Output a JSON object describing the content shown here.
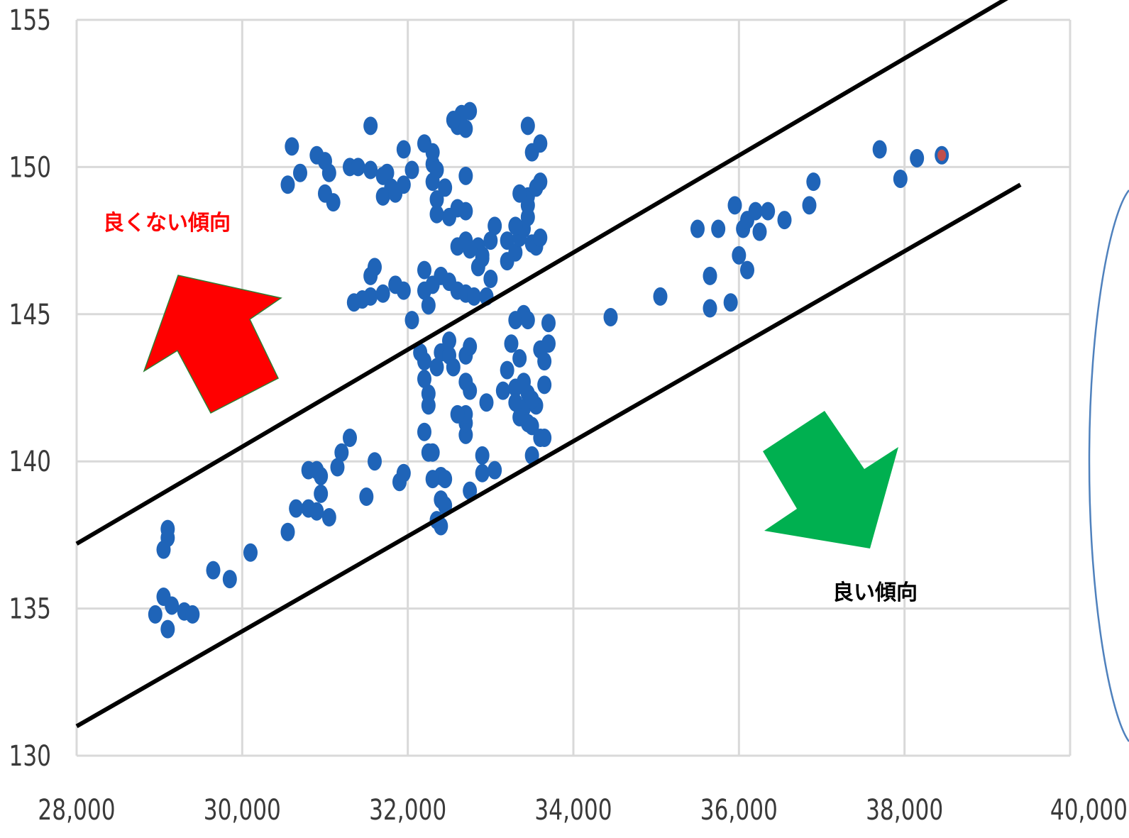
{
  "chart_data": {
    "type": "scatter",
    "title": "",
    "xlabel": "",
    "ylabel": "",
    "xlim": [
      28000,
      40000
    ],
    "ylim": [
      130,
      155
    ],
    "x_ticks": [
      28000,
      30000,
      32000,
      34000,
      36000,
      38000,
      40000
    ],
    "x_tick_labels": [
      "28,000",
      "30,000",
      "32,000",
      "34,000",
      "36,000",
      "38,000",
      "40,000"
    ],
    "y_ticks": [
      130,
      135,
      140,
      145,
      150,
      155
    ],
    "y_tick_labels": [
      "130",
      "135",
      "140",
      "145",
      "150",
      "155"
    ],
    "grid": true,
    "legend": "none",
    "colors": {
      "points": "#1f64b8",
      "highlight_point": "#c0504d",
      "up_arrow": "#ff0000",
      "up_arrow_border": "#2e7d32",
      "down_arrow": "#00b050",
      "bad_label": "#ff0000",
      "good_label": "#000000",
      "band_lines": "#000000",
      "grid": "#d9d9d9",
      "outline": "#4f81bd"
    },
    "annotations": [
      {
        "text": "良くない傾向",
        "color": "#ff0000"
      },
      {
        "text": "良い傾向",
        "color": "#000000"
      }
    ],
    "band_lines": [
      {
        "name": "upper",
        "from": [
          28000,
          137.2
        ],
        "to": [
          39400,
          156
        ]
      },
      {
        "name": "lower",
        "from": [
          28000,
          131.0
        ],
        "to": [
          39400,
          149.4
        ]
      }
    ],
    "highlight_point": {
      "x": 38450,
      "y": 150.4
    },
    "points": [
      [
        29.1,
        137.7
      ],
      [
        29.1,
        137.4
      ],
      [
        29.05,
        137.0
      ],
      [
        29.05,
        135.4
      ],
      [
        29.15,
        135.1
      ],
      [
        28.95,
        134.8
      ],
      [
        29.3,
        134.9
      ],
      [
        29.4,
        134.8
      ],
      [
        29.1,
        134.3
      ],
      [
        29.65,
        136.3
      ],
      [
        29.85,
        136.0
      ],
      [
        30.1,
        136.9
      ],
      [
        30.55,
        137.6
      ],
      [
        30.65,
        138.4
      ],
      [
        30.8,
        138.4
      ],
      [
        30.95,
        138.9
      ],
      [
        31.05,
        138.1
      ],
      [
        30.9,
        138.3
      ],
      [
        30.8,
        139.7
      ],
      [
        30.9,
        139.7
      ],
      [
        30.95,
        139.5
      ],
      [
        31.15,
        139.8
      ],
      [
        31.2,
        140.3
      ],
      [
        31.3,
        140.8
      ],
      [
        31.5,
        138.8
      ],
      [
        31.6,
        140.0
      ],
      [
        31.9,
        139.3
      ],
      [
        31.95,
        139.6
      ],
      [
        32.2,
        141.0
      ],
      [
        32.25,
        140.3
      ],
      [
        32.3,
        140.3
      ],
      [
        32.3,
        139.4
      ],
      [
        32.4,
        139.5
      ],
      [
        32.45,
        139.4
      ],
      [
        32.4,
        138.7
      ],
      [
        32.45,
        138.5
      ],
      [
        32.35,
        138.0
      ],
      [
        32.4,
        137.8
      ],
      [
        32.75,
        139.0
      ],
      [
        32.9,
        139.6
      ],
      [
        32.9,
        140.2
      ],
      [
        33.05,
        139.7
      ],
      [
        32.7,
        140.9
      ],
      [
        32.7,
        141.3
      ],
      [
        32.7,
        141.6
      ],
      [
        32.95,
        142.0
      ],
      [
        33.3,
        142.0
      ],
      [
        33.4,
        141.8
      ],
      [
        33.35,
        141.5
      ],
      [
        33.45,
        141.3
      ],
      [
        33.5,
        141.2
      ],
      [
        33.55,
        141.9
      ],
      [
        33.6,
        140.8
      ],
      [
        33.5,
        140.2
      ],
      [
        33.15,
        142.4
      ],
      [
        33.3,
        142.5
      ],
      [
        33.4,
        142.7
      ],
      [
        33.45,
        142.3
      ],
      [
        33.5,
        142.1
      ],
      [
        33.2,
        143.1
      ],
      [
        33.35,
        143.5
      ],
      [
        33.25,
        144.0
      ],
      [
        33.3,
        144.8
      ],
      [
        33.4,
        145.0
      ],
      [
        33.45,
        144.8
      ],
      [
        33.6,
        143.8
      ],
      [
        33.65,
        143.4
      ],
      [
        33.7,
        144.0
      ],
      [
        33.7,
        144.7
      ],
      [
        33.65,
        142.6
      ],
      [
        33.65,
        140.8
      ],
      [
        32.15,
        143.7
      ],
      [
        32.2,
        143.4
      ],
      [
        32.2,
        142.8
      ],
      [
        32.25,
        142.3
      ],
      [
        32.25,
        141.9
      ],
      [
        32.35,
        143.2
      ],
      [
        32.4,
        143.7
      ],
      [
        32.5,
        144.1
      ],
      [
        32.5,
        143.6
      ],
      [
        32.55,
        143.2
      ],
      [
        32.7,
        143.6
      ],
      [
        32.75,
        143.9
      ],
      [
        32.7,
        142.7
      ],
      [
        32.75,
        142.4
      ],
      [
        32.6,
        141.6
      ],
      [
        32.2,
        145.8
      ],
      [
        32.25,
        145.3
      ],
      [
        32.3,
        146.0
      ],
      [
        32.4,
        146.3
      ],
      [
        32.5,
        146.1
      ],
      [
        32.6,
        145.8
      ],
      [
        32.7,
        145.7
      ],
      [
        32.8,
        145.6
      ],
      [
        32.95,
        145.6
      ],
      [
        33.0,
        146.2
      ],
      [
        32.85,
        146.6
      ],
      [
        32.9,
        146.9
      ],
      [
        32.2,
        146.5
      ],
      [
        31.55,
        146.3
      ],
      [
        31.55,
        145.6
      ],
      [
        31.45,
        145.5
      ],
      [
        31.35,
        145.4
      ],
      [
        31.7,
        145.7
      ],
      [
        31.85,
        146.0
      ],
      [
        31.95,
        145.8
      ],
      [
        32.05,
        144.8
      ],
      [
        31.6,
        146.6
      ],
      [
        32.85,
        147.3
      ],
      [
        32.9,
        147.0
      ],
      [
        33.0,
        147.5
      ],
      [
        33.05,
        148.0
      ],
      [
        33.2,
        147.5
      ],
      [
        33.3,
        147.1
      ],
      [
        33.35,
        147.6
      ],
      [
        33.5,
        147.4
      ],
      [
        33.55,
        147.3
      ],
      [
        33.6,
        147.6
      ],
      [
        33.4,
        147.9
      ],
      [
        33.45,
        148.3
      ],
      [
        33.45,
        148.7
      ],
      [
        33.3,
        148.0
      ],
      [
        33.2,
        146.8
      ],
      [
        32.6,
        147.3
      ],
      [
        32.7,
        147.5
      ],
      [
        32.75,
        147.2
      ],
      [
        32.5,
        148.3
      ],
      [
        32.6,
        148.6
      ],
      [
        32.7,
        148.5
      ],
      [
        32.35,
        148.4
      ],
      [
        32.35,
        148.9
      ],
      [
        32.3,
        149.5
      ],
      [
        32.45,
        149.3
      ],
      [
        32.7,
        149.7
      ],
      [
        32.3,
        150.1
      ],
      [
        32.35,
        149.9
      ],
      [
        32.2,
        150.8
      ],
      [
        32.3,
        150.5
      ],
      [
        33.45,
        149.0
      ],
      [
        33.55,
        149.3
      ],
      [
        33.6,
        149.5
      ],
      [
        33.35,
        149.1
      ],
      [
        33.5,
        150.5
      ],
      [
        33.6,
        150.8
      ],
      [
        33.45,
        151.4
      ],
      [
        32.6,
        151.4
      ],
      [
        32.65,
        151.8
      ],
      [
        32.7,
        151.3
      ],
      [
        32.75,
        151.9
      ],
      [
        32.55,
        151.6
      ],
      [
        31.55,
        151.4
      ],
      [
        30.55,
        149.4
      ],
      [
        30.7,
        149.8
      ],
      [
        30.6,
        150.7
      ],
      [
        30.9,
        150.4
      ],
      [
        31.0,
        150.2
      ],
      [
        31.05,
        149.8
      ],
      [
        31.0,
        149.1
      ],
      [
        31.1,
        148.8
      ],
      [
        31.3,
        150.0
      ],
      [
        31.4,
        150.0
      ],
      [
        31.55,
        149.9
      ],
      [
        31.7,
        149.7
      ],
      [
        31.75,
        149.8
      ],
      [
        31.8,
        149.3
      ],
      [
        31.7,
        149.0
      ],
      [
        31.85,
        149.1
      ],
      [
        31.95,
        149.4
      ],
      [
        32.05,
        149.9
      ],
      [
        31.95,
        150.6
      ],
      [
        34.45,
        144.9
      ],
      [
        35.05,
        145.6
      ],
      [
        35.65,
        145.2
      ],
      [
        35.65,
        146.3
      ],
      [
        35.9,
        145.4
      ],
      [
        35.5,
        147.9
      ],
      [
        35.75,
        147.9
      ],
      [
        35.95,
        148.7
      ],
      [
        36.05,
        147.9
      ],
      [
        36.0,
        147.0
      ],
      [
        36.1,
        146.5
      ],
      [
        36.1,
        148.2
      ],
      [
        36.2,
        148.5
      ],
      [
        36.25,
        147.8
      ],
      [
        36.35,
        148.5
      ],
      [
        36.55,
        148.2
      ],
      [
        36.85,
        148.7
      ],
      [
        36.9,
        149.5
      ],
      [
        37.7,
        150.6
      ],
      [
        37.95,
        149.6
      ],
      [
        38.15,
        150.3
      ]
    ]
  }
}
